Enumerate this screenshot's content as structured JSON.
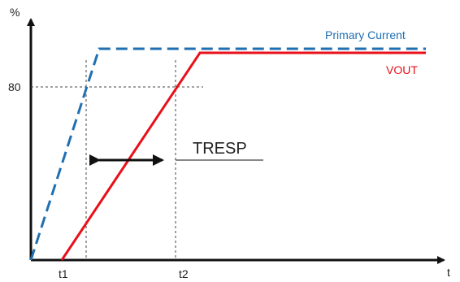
{
  "axis": {
    "y_unit": "%",
    "x_unit": "t",
    "y_mark": "80",
    "t1": "t1",
    "t2": "t2"
  },
  "series": [
    {
      "name": "Primary Current",
      "color": "#1f6fb2",
      "style": "dashed"
    },
    {
      "name": "VOUT",
      "color": "#e8101a",
      "style": "solid"
    }
  ],
  "annotation": {
    "label": "TRESP"
  },
  "colors": {
    "axis": "#111111",
    "guide": "#444444"
  }
}
